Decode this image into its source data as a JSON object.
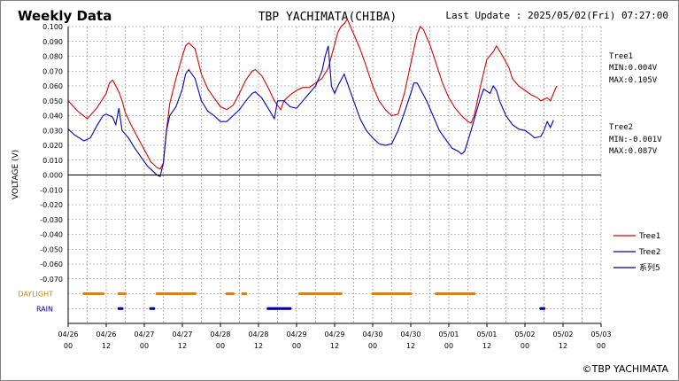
{
  "header": {
    "title": "Weekly Data",
    "station": "TBP YACHIMATA(CHIBA)",
    "last_update": "Last Update : 2025/05/02(Fri) 07:27:00"
  },
  "footer": {
    "copyright": "©TBP YACHIMATA"
  },
  "stats": {
    "tree1": {
      "name": "Tree1",
      "min": "MIN:0.004V",
      "max": "MAX:0.105V"
    },
    "tree2": {
      "name": "Tree2",
      "min": "MIN:-0.001V",
      "max": "MAX:0.087V"
    }
  },
  "colors": {
    "tree1": "#e00000",
    "tree2": "#0000cc",
    "series5": "#000080",
    "daylight": "#e08000",
    "rain": "#0000aa",
    "zero_line": "#000000",
    "grid": "#808080"
  },
  "chart_data": {
    "type": "line",
    "title": "Weekly Data",
    "ylabel": "VOLTAGE (V)",
    "ylim": [
      -0.1,
      0.1
    ],
    "grid": true,
    "legend_placement": "right",
    "y_ticks": [
      "0.100",
      "0.090",
      "0.080",
      "0.070",
      "0.060",
      "0.050",
      "0.040",
      "0.030",
      "0.020",
      "0.010",
      "0.000",
      "-0.010",
      "-0.020",
      "-0.030",
      "-0.040",
      "-0.050",
      "-0.060",
      "-0.070"
    ],
    "x_ticks": [
      {
        "h": 0,
        "date": "04/26",
        "hour": "00"
      },
      {
        "h": 12,
        "date": "04/26",
        "hour": "12"
      },
      {
        "h": 24,
        "date": "04/27",
        "hour": "00"
      },
      {
        "h": 36,
        "date": "04/27",
        "hour": "12"
      },
      {
        "h": 48,
        "date": "04/28",
        "hour": "00"
      },
      {
        "h": 60,
        "date": "04/28",
        "hour": "12"
      },
      {
        "h": 72,
        "date": "04/29",
        "hour": "00"
      },
      {
        "h": 84,
        "date": "04/29",
        "hour": "12"
      },
      {
        "h": 96,
        "date": "04/30",
        "hour": "00"
      },
      {
        "h": 108,
        "date": "04/30",
        "hour": "12"
      },
      {
        "h": 120,
        "date": "05/01",
        "hour": "00"
      },
      {
        "h": 132,
        "date": "05/01",
        "hour": "12"
      },
      {
        "h": 144,
        "date": "05/02",
        "hour": "00"
      },
      {
        "h": 156,
        "date": "05/02",
        "hour": "12"
      },
      {
        "h": 168,
        "date": "05/03",
        "hour": "00"
      }
    ],
    "x_hour_range": [
      0,
      168
    ],
    "series": [
      {
        "name": "Tree1",
        "color": "#e00000",
        "points": [
          [
            0,
            0.05
          ],
          [
            3,
            0.043
          ],
          [
            6,
            0.038
          ],
          [
            9,
            0.045
          ],
          [
            12,
            0.055
          ],
          [
            13,
            0.062
          ],
          [
            14,
            0.064
          ],
          [
            15,
            0.06
          ],
          [
            16,
            0.056
          ],
          [
            17,
            0.05
          ],
          [
            18,
            0.042
          ],
          [
            20,
            0.033
          ],
          [
            22,
            0.025
          ],
          [
            24,
            0.017
          ],
          [
            26,
            0.009
          ],
          [
            28,
            0.005
          ],
          [
            29,
            0.004
          ],
          [
            30,
            0.008
          ],
          [
            31,
            0.03
          ],
          [
            32,
            0.048
          ],
          [
            34,
            0.065
          ],
          [
            36,
            0.08
          ],
          [
            37,
            0.087
          ],
          [
            38,
            0.089
          ],
          [
            40,
            0.085
          ],
          [
            42,
            0.068
          ],
          [
            44,
            0.058
          ],
          [
            46,
            0.052
          ],
          [
            48,
            0.046
          ],
          [
            50,
            0.044
          ],
          [
            52,
            0.047
          ],
          [
            54,
            0.055
          ],
          [
            56,
            0.064
          ],
          [
            58,
            0.07
          ],
          [
            59,
            0.071
          ],
          [
            61,
            0.067
          ],
          [
            63,
            0.059
          ],
          [
            65,
            0.05
          ],
          [
            67,
            0.044
          ],
          [
            68,
            0.05
          ],
          [
            70,
            0.054
          ],
          [
            72,
            0.057
          ],
          [
            74,
            0.059
          ],
          [
            76,
            0.059
          ],
          [
            78,
            0.062
          ],
          [
            80,
            0.065
          ],
          [
            82,
            0.072
          ],
          [
            84,
            0.088
          ],
          [
            85,
            0.096
          ],
          [
            86,
            0.1
          ],
          [
            87,
            0.102
          ],
          [
            88,
            0.105
          ],
          [
            89,
            0.1
          ],
          [
            92,
            0.085
          ],
          [
            94,
            0.073
          ],
          [
            96,
            0.06
          ],
          [
            98,
            0.05
          ],
          [
            100,
            0.044
          ],
          [
            102,
            0.04
          ],
          [
            104,
            0.041
          ],
          [
            106,
            0.055
          ],
          [
            108,
            0.075
          ],
          [
            110,
            0.095
          ],
          [
            111,
            0.1
          ],
          [
            112,
            0.098
          ],
          [
            114,
            0.088
          ],
          [
            116,
            0.075
          ],
          [
            118,
            0.062
          ],
          [
            120,
            0.052
          ],
          [
            122,
            0.045
          ],
          [
            124,
            0.04
          ],
          [
            126,
            0.036
          ],
          [
            127,
            0.035
          ],
          [
            128,
            0.04
          ],
          [
            130,
            0.06
          ],
          [
            132,
            0.078
          ],
          [
            134,
            0.083
          ],
          [
            135,
            0.087
          ],
          [
            137,
            0.08
          ],
          [
            139,
            0.072
          ],
          [
            140,
            0.065
          ],
          [
            142,
            0.06
          ],
          [
            144,
            0.057
          ],
          [
            146,
            0.054
          ],
          [
            148,
            0.052
          ],
          [
            149,
            0.05
          ],
          [
            151,
            0.052
          ],
          [
            152,
            0.05
          ],
          [
            153,
            0.055
          ],
          [
            154,
            0.06
          ]
        ]
      },
      {
        "name": "Tree2",
        "color": "#0000cc",
        "points": [
          [
            0,
            0.031
          ],
          [
            2,
            0.027
          ],
          [
            5,
            0.023
          ],
          [
            7,
            0.025
          ],
          [
            9,
            0.033
          ],
          [
            11,
            0.04
          ],
          [
            12,
            0.041
          ],
          [
            13,
            0.04
          ],
          [
            14,
            0.039
          ],
          [
            15,
            0.034
          ],
          [
            16,
            0.045
          ],
          [
            17,
            0.03
          ],
          [
            19,
            0.025
          ],
          [
            21,
            0.018
          ],
          [
            23,
            0.012
          ],
          [
            25,
            0.006
          ],
          [
            27,
            0.002
          ],
          [
            28,
            0.0
          ],
          [
            29,
            -0.001
          ],
          [
            30,
            0.008
          ],
          [
            31,
            0.03
          ],
          [
            32,
            0.04
          ],
          [
            34,
            0.046
          ],
          [
            36,
            0.058
          ],
          [
            37,
            0.068
          ],
          [
            38,
            0.071
          ],
          [
            40,
            0.065
          ],
          [
            42,
            0.05
          ],
          [
            44,
            0.043
          ],
          [
            46,
            0.04
          ],
          [
            48,
            0.036
          ],
          [
            50,
            0.036
          ],
          [
            52,
            0.04
          ],
          [
            54,
            0.044
          ],
          [
            56,
            0.05
          ],
          [
            58,
            0.055
          ],
          [
            59,
            0.056
          ],
          [
            61,
            0.052
          ],
          [
            63,
            0.045
          ],
          [
            65,
            0.038
          ],
          [
            66,
            0.05
          ],
          [
            68,
            0.05
          ],
          [
            70,
            0.046
          ],
          [
            72,
            0.045
          ],
          [
            74,
            0.05
          ],
          [
            76,
            0.055
          ],
          [
            78,
            0.06
          ],
          [
            80,
            0.07
          ],
          [
            81,
            0.08
          ],
          [
            82,
            0.087
          ],
          [
            83,
            0.06
          ],
          [
            84,
            0.055
          ],
          [
            85,
            0.06
          ],
          [
            87,
            0.068
          ],
          [
            88,
            0.062
          ],
          [
            90,
            0.05
          ],
          [
            92,
            0.038
          ],
          [
            94,
            0.03
          ],
          [
            96,
            0.025
          ],
          [
            98,
            0.021
          ],
          [
            100,
            0.02
          ],
          [
            102,
            0.021
          ],
          [
            104,
            0.03
          ],
          [
            106,
            0.042
          ],
          [
            108,
            0.055
          ],
          [
            109,
            0.062
          ],
          [
            110,
            0.062
          ],
          [
            111,
            0.058
          ],
          [
            113,
            0.05
          ],
          [
            115,
            0.04
          ],
          [
            117,
            0.03
          ],
          [
            119,
            0.024
          ],
          [
            121,
            0.018
          ],
          [
            123,
            0.016
          ],
          [
            124,
            0.014
          ],
          [
            125,
            0.016
          ],
          [
            127,
            0.03
          ],
          [
            129,
            0.045
          ],
          [
            130,
            0.052
          ],
          [
            131,
            0.058
          ],
          [
            133,
            0.055
          ],
          [
            134,
            0.06
          ],
          [
            135,
            0.057
          ],
          [
            136,
            0.05
          ],
          [
            138,
            0.04
          ],
          [
            140,
            0.034
          ],
          [
            142,
            0.031
          ],
          [
            144,
            0.03
          ],
          [
            146,
            0.027
          ],
          [
            147,
            0.025
          ],
          [
            149,
            0.026
          ],
          [
            150,
            0.03
          ],
          [
            151,
            0.036
          ],
          [
            152,
            0.032
          ],
          [
            153,
            0.037
          ]
        ]
      },
      {
        "name": "系列5",
        "color": "#000080",
        "points": []
      }
    ],
    "indicators": [
      {
        "name": "DAYLIGHT",
        "color": "#e08000",
        "ranges": [
          [
            5,
            11
          ],
          [
            16,
            18
          ],
          [
            28,
            40
          ],
          [
            50,
            52
          ],
          [
            55,
            56
          ],
          [
            73,
            86
          ],
          [
            96,
            108
          ],
          [
            116,
            128
          ]
        ]
      },
      {
        "name": "RAIN",
        "color": "#0000aa",
        "ranges": [
          [
            16,
            17
          ],
          [
            26,
            27
          ],
          [
            63,
            70
          ],
          [
            149,
            150
          ]
        ]
      }
    ]
  }
}
